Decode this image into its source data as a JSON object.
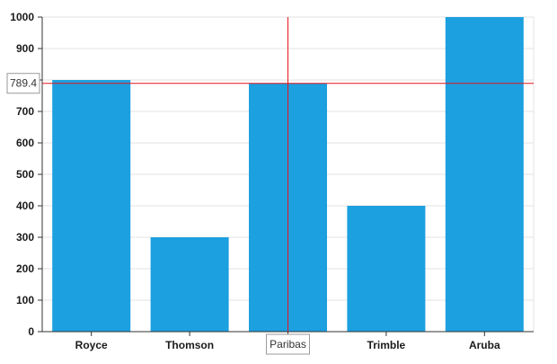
{
  "chart_data": {
    "type": "bar",
    "categories": [
      "Royce",
      "Thomson",
      "Paribas",
      "Trimble",
      "Aruba"
    ],
    "values": [
      800,
      300,
      790,
      400,
      1000
    ],
    "ylim": [
      0,
      1000
    ],
    "yticks": [
      0,
      100,
      200,
      300,
      400,
      500,
      600,
      700,
      800,
      900,
      1000
    ],
    "grid": true,
    "legend": "none",
    "crosshair": {
      "x_category": "Paribas",
      "y_value": 789.4,
      "y_label": "789.4",
      "x_label": "Paribas"
    }
  },
  "colors": {
    "bar": "#1ca0e0",
    "grid": "#e3e3e3",
    "axis": "#333333",
    "crosshair": "#e8141c",
    "tooltip_border": "#9a9a9a"
  }
}
